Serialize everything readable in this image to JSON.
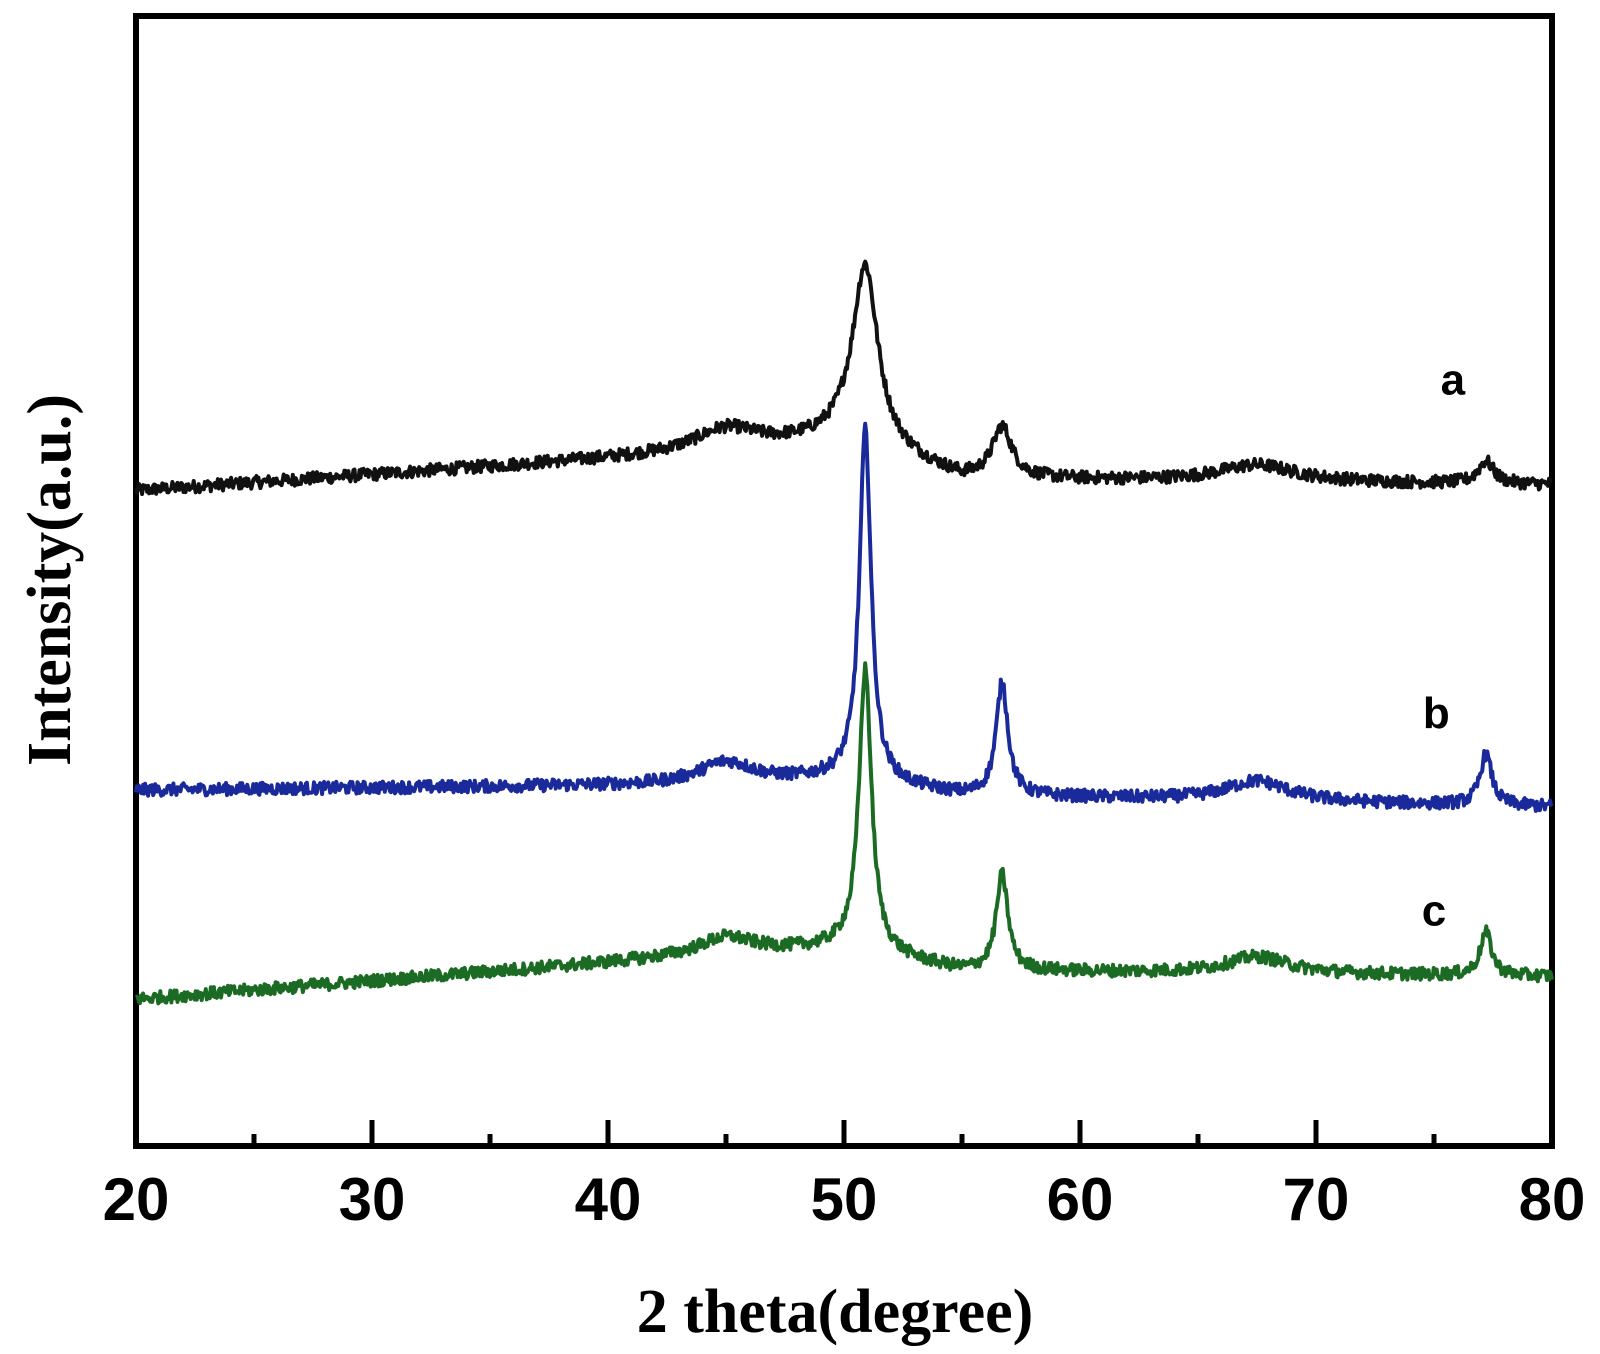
{
  "chart_data": {
    "type": "line",
    "xlabel": "2 theta(degree)",
    "ylabel": "Intensity(a.u.)",
    "xlim": [
      20,
      80
    ],
    "ylim": [
      0,
      100
    ],
    "x_ticks": [
      20,
      30,
      40,
      50,
      60,
      70,
      80
    ],
    "x_minor_ticks": [
      25,
      35,
      45,
      55,
      65,
      75
    ],
    "grid": false,
    "legend": "inline labels",
    "series": [
      {
        "name": "a",
        "color": "#111111",
        "baseline": [
          [
            20,
            58.0
          ],
          [
            45,
            61.5
          ],
          [
            50,
            62.5
          ],
          [
            55,
            59.0
          ],
          [
            80,
            58.5
          ]
        ],
        "peaks": [
          {
            "x": 45.0,
            "height": 2.0,
            "width": 1.6
          },
          {
            "x": 50.9,
            "height": 16.0,
            "width": 0.65
          },
          {
            "x": 56.7,
            "height": 4.5,
            "width": 0.5
          },
          {
            "x": 67.5,
            "height": 1.5,
            "width": 2.0
          },
          {
            "x": 77.2,
            "height": 2.0,
            "width": 0.4
          }
        ]
      },
      {
        "name": "b",
        "color": "#1a2a9a",
        "baseline": [
          [
            20,
            31.5
          ],
          [
            45,
            32.0
          ],
          [
            50,
            32.5
          ],
          [
            55,
            31.0
          ],
          [
            80,
            30.0
          ]
        ],
        "peaks": [
          {
            "x": 45.0,
            "height": 2.0,
            "width": 1.4
          },
          {
            "x": 50.9,
            "height": 31.0,
            "width": 0.3
          },
          {
            "x": 56.7,
            "height": 10.0,
            "width": 0.3
          },
          {
            "x": 67.5,
            "height": 1.8,
            "width": 1.6
          },
          {
            "x": 77.2,
            "height": 4.5,
            "width": 0.3
          }
        ]
      },
      {
        "name": "c",
        "color": "#1c6b24",
        "baseline": [
          [
            20,
            13.0
          ],
          [
            45,
            17.0
          ],
          [
            50,
            17.5
          ],
          [
            55,
            15.5
          ],
          [
            80,
            15.0
          ]
        ],
        "peaks": [
          {
            "x": 45.0,
            "height": 1.5,
            "width": 1.4
          },
          {
            "x": 50.9,
            "height": 25.0,
            "width": 0.32
          },
          {
            "x": 56.7,
            "height": 8.5,
            "width": 0.3
          },
          {
            "x": 67.5,
            "height": 1.5,
            "width": 1.6
          },
          {
            "x": 77.2,
            "height": 3.8,
            "width": 0.3
          }
        ]
      }
    ],
    "annotations": [
      {
        "text": "a",
        "x": 75.8,
        "y": 66.5
      },
      {
        "text": "b",
        "x": 75.1,
        "y": 37.0
      },
      {
        "text": "c",
        "x": 75.0,
        "y": 19.5
      }
    ]
  }
}
